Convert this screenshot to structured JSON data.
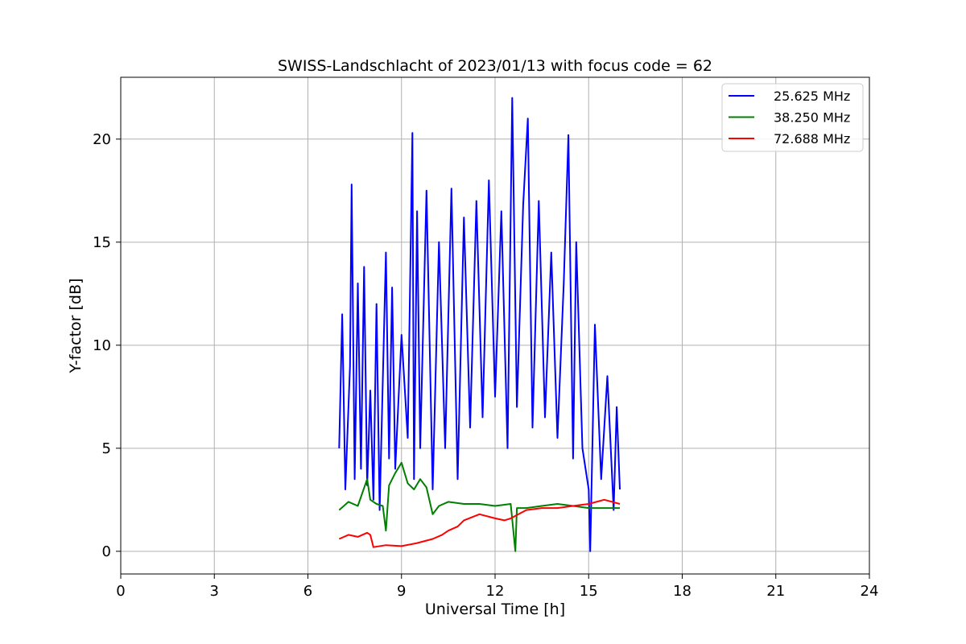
{
  "chart_data": {
    "type": "line",
    "title": "SWISS-Landschlacht of 2023/01/13 with focus code = 62",
    "xlabel": "Universal Time [h]",
    "ylabel": "Y-factor [dB]",
    "xlim": [
      0,
      24
    ],
    "ylim": [
      -1.1,
      23.0
    ],
    "xticks": [
      0,
      3,
      6,
      9,
      12,
      15,
      18,
      21,
      24
    ],
    "yticks": [
      0,
      5,
      10,
      15,
      20
    ],
    "grid": true,
    "legend_position": "top-right",
    "series": [
      {
        "name": "25.625 MHz",
        "color": "#0000ff",
        "x": [
          7.0,
          7.1,
          7.2,
          7.35,
          7.4,
          7.5,
          7.6,
          7.7,
          7.8,
          7.9,
          8.0,
          8.1,
          8.2,
          8.3,
          8.5,
          8.6,
          8.7,
          8.8,
          9.0,
          9.2,
          9.35,
          9.4,
          9.5,
          9.6,
          9.8,
          10.0,
          10.2,
          10.4,
          10.6,
          10.8,
          11.0,
          11.2,
          11.4,
          11.6,
          11.8,
          12.0,
          12.2,
          12.4,
          12.55,
          12.7,
          12.9,
          13.05,
          13.2,
          13.4,
          13.6,
          13.8,
          14.0,
          14.2,
          14.35,
          14.5,
          14.6,
          14.8,
          15.0,
          15.05,
          15.2,
          15.4,
          15.6,
          15.8,
          15.9,
          16.0
        ],
        "y": [
          5.0,
          11.5,
          3.0,
          9.0,
          17.8,
          3.5,
          13.0,
          4.0,
          13.8,
          3.2,
          7.8,
          2.5,
          12.0,
          2.0,
          14.5,
          4.5,
          12.8,
          4.0,
          10.5,
          5.5,
          20.3,
          3.5,
          16.5,
          5.0,
          17.5,
          3.0,
          15.0,
          5.0,
          17.6,
          3.5,
          16.2,
          6.0,
          17.0,
          6.5,
          18.0,
          7.5,
          16.5,
          5.0,
          22.0,
          7.0,
          16.8,
          21.0,
          6.0,
          17.0,
          6.5,
          14.5,
          5.5,
          13.0,
          20.2,
          4.5,
          15.0,
          5.0,
          3.0,
          0.0,
          11.0,
          3.5,
          8.5,
          2.0,
          7.0,
          3.0
        ]
      },
      {
        "name": "38.250 MHz",
        "color": "#008000",
        "x": [
          7.0,
          7.3,
          7.6,
          7.9,
          8.0,
          8.2,
          8.4,
          8.5,
          8.6,
          8.8,
          9.0,
          9.2,
          9.4,
          9.6,
          9.8,
          10.0,
          10.2,
          10.5,
          11.0,
          11.5,
          12.0,
          12.5,
          12.65,
          12.7,
          13.0,
          13.5,
          14.0,
          14.5,
          15.0,
          15.5,
          16.0
        ],
        "y": [
          2.0,
          2.4,
          2.2,
          3.5,
          2.5,
          2.3,
          2.2,
          1.0,
          3.2,
          3.8,
          4.3,
          3.3,
          3.0,
          3.5,
          3.1,
          1.8,
          2.2,
          2.4,
          2.3,
          2.3,
          2.2,
          2.3,
          0.0,
          2.1,
          2.1,
          2.2,
          2.3,
          2.2,
          2.1,
          2.1,
          2.1
        ]
      },
      {
        "name": "72.688 MHz",
        "color": "#ff0000",
        "x": [
          7.0,
          7.3,
          7.6,
          7.9,
          8.0,
          8.1,
          8.5,
          9.0,
          9.5,
          10.0,
          10.3,
          10.5,
          10.8,
          11.0,
          11.5,
          12.0,
          12.3,
          12.5,
          13.0,
          13.5,
          14.0,
          14.5,
          15.0,
          15.5,
          16.0
        ],
        "y": [
          0.6,
          0.8,
          0.7,
          0.9,
          0.8,
          0.2,
          0.3,
          0.25,
          0.4,
          0.6,
          0.8,
          1.0,
          1.2,
          1.5,
          1.8,
          1.6,
          1.5,
          1.6,
          2.0,
          2.1,
          2.1,
          2.2,
          2.3,
          2.5,
          2.3
        ]
      }
    ]
  }
}
